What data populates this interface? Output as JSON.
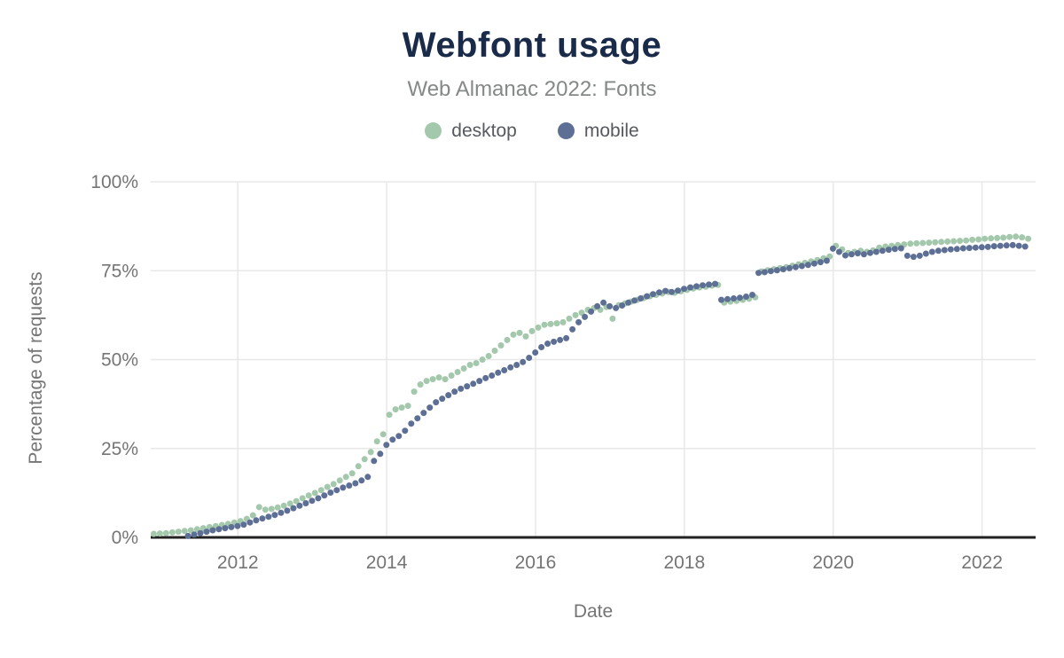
{
  "header": {
    "title": "Webfont usage",
    "subtitle": "Web Almanac 2022: Fonts"
  },
  "legend": {
    "items": [
      {
        "label": "desktop",
        "color": "#a3c8ac"
      },
      {
        "label": "mobile",
        "color": "#5d6f94"
      }
    ]
  },
  "colors": {
    "title": "#1a2b49",
    "subtitle": "#858889",
    "axis_text": "#757575",
    "gridline": "#e8e8e8",
    "axis_line": "#222222",
    "background": "#ffffff",
    "desktop": "#a3c8ac",
    "mobile": "#5d6f94"
  },
  "chart_data": {
    "type": "scatter",
    "title": "Webfont usage",
    "subtitle": "Web Almanac 2022: Fonts",
    "xlabel": "Date",
    "ylabel": "Percentage of requests",
    "grid": true,
    "legend_position": "top",
    "xlim": [
      2010.83,
      2022.72
    ],
    "ylim": [
      0,
      100
    ],
    "x_ticks": [
      {
        "label": "2012",
        "value": 2012
      },
      {
        "label": "2014",
        "value": 2014
      },
      {
        "label": "2016",
        "value": 2016
      },
      {
        "label": "2018",
        "value": 2018
      },
      {
        "label": "2020",
        "value": 2020
      },
      {
        "label": "2022",
        "value": 2022
      }
    ],
    "y_ticks": [
      {
        "label": "0%",
        "value": 0
      },
      {
        "label": "25%",
        "value": 25
      },
      {
        "label": "50%",
        "value": 50
      },
      {
        "label": "75%",
        "value": 75
      },
      {
        "label": "100%",
        "value": 100
      }
    ],
    "series": [
      {
        "name": "desktop",
        "color": "#a3c8ac",
        "start": 2010.87,
        "step_years": 0.08333,
        "values": [
          1.0,
          1.1,
          1.2,
          1.4,
          1.6,
          1.8,
          2.0,
          2.3,
          2.6,
          2.9,
          3.2,
          3.5,
          3.8,
          4.2,
          4.6,
          5.2,
          6.2,
          8.5,
          7.8,
          8.0,
          8.4,
          8.9,
          9.5,
          10.2,
          11.0,
          11.8,
          12.5,
          13.3,
          14.2,
          15.0,
          16.0,
          17.0,
          18.0,
          20.0,
          22.0,
          24.0,
          27.0,
          29.0,
          34.5,
          36.0,
          36.5,
          37.0,
          41.0,
          43.0,
          44.0,
          44.5,
          45.0,
          44.5,
          45.5,
          46.5,
          47.5,
          48.5,
          49.0,
          50.0,
          51.0,
          52.5,
          54.0,
          55.5,
          57.0,
          57.5,
          56.5,
          58.0,
          59.0,
          59.8,
          60.0,
          60.2,
          60.5,
          61.5,
          62.5,
          63.2,
          64.0,
          64.5,
          64.0,
          64.8,
          61.5,
          65.3,
          65.8,
          66.3,
          66.8,
          67.3,
          67.8,
          68.2,
          68.6,
          69.0,
          68.8,
          69.2,
          69.6,
          70.0,
          70.3,
          70.5,
          70.8,
          71.0,
          66.0,
          66.3,
          66.5,
          66.8,
          67.1,
          67.5,
          74.8,
          75.1,
          75.4,
          75.7,
          76.0,
          76.4,
          76.8,
          77.2,
          77.6,
          78.0,
          78.5,
          79.0,
          82.0,
          81.0,
          80.0,
          80.3,
          80.6,
          80.3,
          80.7,
          81.5,
          81.8,
          82.0,
          82.2,
          82.4,
          82.6,
          82.7,
          82.8,
          82.9,
          83.0,
          83.1,
          83.2,
          83.3,
          83.4,
          83.5,
          83.7,
          83.8,
          84.0,
          84.1,
          84.2,
          84.3,
          84.5,
          84.6,
          84.4,
          84.0
        ]
      },
      {
        "name": "mobile",
        "color": "#5d6f94",
        "start": 2011.33,
        "step_years": 0.08333,
        "values": [
          0.4,
          0.8,
          1.2,
          1.6,
          2.0,
          2.3,
          2.6,
          2.9,
          3.2,
          3.6,
          4.2,
          4.8,
          5.3,
          5.8,
          6.3,
          6.9,
          7.5,
          8.2,
          8.9,
          9.6,
          10.3,
          11.0,
          11.8,
          12.6,
          13.3,
          14.0,
          14.6,
          15.2,
          16.0,
          17.0,
          21.5,
          23.5,
          26.0,
          27.5,
          28.5,
          30.0,
          32.0,
          33.5,
          35.0,
          36.5,
          38.0,
          39.0,
          40.0,
          41.0,
          41.8,
          42.5,
          43.2,
          44.0,
          44.8,
          45.5,
          46.3,
          47.0,
          47.8,
          48.5,
          49.3,
          50.5,
          52.0,
          53.5,
          54.5,
          55.0,
          55.5,
          56.0,
          58.5,
          60.5,
          62.0,
          63.5,
          65.0,
          66.0,
          65.0,
          64.5,
          65.2,
          66.0,
          66.6,
          67.2,
          67.8,
          68.4,
          68.9,
          69.3,
          69.0,
          69.4,
          69.9,
          70.3,
          70.6,
          70.9,
          71.1,
          71.3,
          66.8,
          67.0,
          67.2,
          67.4,
          67.7,
          68.2,
          74.4,
          74.6,
          74.9,
          75.1,
          75.4,
          75.7,
          76.0,
          76.3,
          76.6,
          77.0,
          77.4,
          77.8,
          81.2,
          80.3,
          79.3,
          79.6,
          79.9,
          79.6,
          80.0,
          80.3,
          80.6,
          80.9,
          81.1,
          81.3,
          79.2,
          78.9,
          79.2,
          79.8,
          80.3,
          80.6,
          80.8,
          81.0,
          81.1,
          81.3,
          81.4,
          81.5,
          81.6,
          81.7,
          81.9,
          82.0,
          82.1,
          82.2,
          82.0,
          81.8
        ]
      }
    ]
  }
}
